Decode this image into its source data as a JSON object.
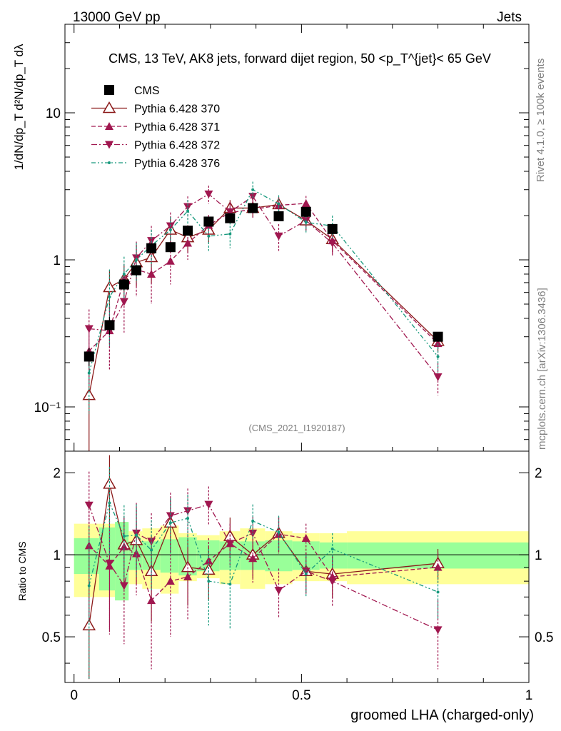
{
  "header": {
    "left": "13000 GeV pp",
    "right": "Jets"
  },
  "side": {
    "top": "Rivet 4.1.0, ≥ 100k events",
    "bottom": "mcplots.cern.ch [arXiv:1306.3436]"
  },
  "colors": {
    "cms": "#000000",
    "p370": "#8b1a1a",
    "p371": "#a0174f",
    "p372": "#a0174f",
    "p376": "#17997d",
    "band_inner": "#99ff99",
    "band_outer": "#ffff99"
  },
  "chart_data": {
    "type": "scatter",
    "title": "CMS, 13 TeV, AK8 jets, forward dijet region, 50 <p_T^{jet}< 65 GeV",
    "watermark": "(CMS_2021_I1920187)",
    "ylabel_main": "1/dN/dp_T d²N/dp_T dλ",
    "ylabel_ratio": "Ratio to CMS",
    "xlabel": "groomed LHA (charged-only)",
    "xlim": [
      -0.02,
      1.0
    ],
    "ylim_main": [
      0.05,
      40
    ],
    "ylim_ratio": [
      0.34,
      2.4
    ],
    "x_ticks": [
      "0",
      "0.5",
      "1"
    ],
    "y_ticks_main": [
      "10⁻¹",
      "1",
      "10"
    ],
    "y_ticks_ratio": [
      "0.5",
      "1",
      "2"
    ],
    "x": [
      0.033,
      0.078,
      0.11,
      0.137,
      0.17,
      0.212,
      0.25,
      0.296,
      0.343,
      0.393,
      0.45,
      0.51,
      0.568,
      0.8
    ],
    "bin_edges": [
      0.0,
      0.055,
      0.09,
      0.12,
      0.15,
      0.19,
      0.23,
      0.27,
      0.32,
      0.365,
      0.42,
      0.48,
      0.54,
      0.6,
      1.0
    ],
    "cms_band_inner": [
      0.15,
      0.26,
      0.32,
      0.12,
      0.12,
      0.14,
      0.16,
      0.13,
      0.12,
      0.12,
      0.13,
      0.12,
      0.11,
      0.11
    ],
    "cms_band_outer": [
      0.3,
      0.3,
      0.3,
      0.22,
      0.25,
      0.28,
      0.2,
      0.18,
      0.22,
      0.25,
      0.22,
      0.2,
      0.2,
      0.22
    ],
    "series": [
      {
        "name": "CMS",
        "marker": "square",
        "style": "none",
        "values": [
          0.22,
          0.36,
          0.68,
          0.85,
          1.2,
          1.22,
          1.58,
          1.82,
          1.92,
          2.25,
          1.98,
          2.12,
          1.62,
          0.3
        ],
        "err": [
          0.03,
          0.05,
          0.06,
          0.07,
          0.08,
          0.08,
          0.09,
          0.1,
          0.1,
          0.1,
          0.1,
          0.1,
          0.09,
          0.02
        ]
      },
      {
        "name": "Pythia 6.428 370",
        "marker": "triangle-up-open",
        "style": "solid",
        "values": [
          0.12,
          0.65,
          0.74,
          0.96,
          1.04,
          1.6,
          1.42,
          1.6,
          2.25,
          2.25,
          2.38,
          1.85,
          1.38,
          0.28
        ],
        "err": [
          0.07,
          0.2,
          0.18,
          0.3,
          0.35,
          0.35,
          0.3,
          0.3,
          0.3,
          0.3,
          0.3,
          0.25,
          0.25,
          0.04
        ],
        "ratio": [
          0.55,
          1.82,
          1.09,
          1.13,
          0.87,
          1.31,
          0.9,
          0.88,
          1.17,
          1.0,
          1.2,
          0.87,
          0.85,
          0.93
        ],
        "ratio_err": [
          0.55,
          0.5,
          0.3,
          0.35,
          0.3,
          0.3,
          0.25,
          0.2,
          0.2,
          0.18,
          0.18,
          0.15,
          0.15,
          0.12
        ]
      },
      {
        "name": "Pythia 6.428 371",
        "marker": "triangle-up",
        "style": "dashed",
        "values": [
          0.24,
          0.33,
          0.74,
          0.86,
          0.8,
          0.98,
          1.3,
          1.72,
          2.1,
          2.2,
          2.35,
          2.42,
          1.35,
          0.27
        ],
        "err": [
          0.1,
          0.15,
          0.2,
          0.3,
          0.3,
          0.3,
          0.3,
          0.3,
          0.3,
          0.3,
          0.3,
          0.3,
          0.25,
          0.05
        ],
        "ratio": [
          1.08,
          0.91,
          1.07,
          1.01,
          0.68,
          0.8,
          0.83,
          0.95,
          1.1,
          0.97,
          1.19,
          1.15,
          0.83,
          0.9
        ],
        "ratio_err": [
          0.5,
          0.4,
          0.3,
          0.3,
          0.3,
          0.3,
          0.25,
          0.2,
          0.2,
          0.18,
          0.18,
          0.15,
          0.15,
          0.12
        ]
      },
      {
        "name": "Pythia 6.428 372",
        "marker": "triangle-down",
        "style": "dashdot",
        "values": [
          0.34,
          0.33,
          0.52,
          1.03,
          1.35,
          1.7,
          2.3,
          2.8,
          2.12,
          2.7,
          1.45,
          1.85,
          1.3,
          0.16
        ],
        "err": [
          0.12,
          0.15,
          0.2,
          0.3,
          0.35,
          0.4,
          0.4,
          0.4,
          0.35,
          0.35,
          0.3,
          0.3,
          0.25,
          0.04
        ],
        "ratio": [
          1.52,
          0.93,
          0.77,
          1.2,
          1.12,
          1.39,
          1.45,
          1.53,
          1.1,
          1.2,
          0.74,
          0.87,
          0.8,
          0.53
        ],
        "ratio_err": [
          0.5,
          0.4,
          0.3,
          0.35,
          0.3,
          0.3,
          0.3,
          0.25,
          0.2,
          0.18,
          0.15,
          0.15,
          0.15,
          0.15
        ]
      },
      {
        "name": "Pythia 6.428 376",
        "marker": "dot",
        "style": "dashdotdot",
        "values": [
          0.17,
          0.56,
          0.8,
          1.0,
          1.25,
          1.6,
          2.15,
          1.45,
          1.5,
          3.0,
          2.4,
          1.8,
          1.7,
          0.22
        ],
        "err": [
          0.08,
          0.3,
          0.25,
          0.3,
          0.35,
          0.35,
          0.4,
          0.3,
          0.3,
          0.4,
          0.35,
          0.3,
          0.3,
          0.05
        ],
        "ratio": [
          0.77,
          1.55,
          1.17,
          1.18,
          1.04,
          1.31,
          1.36,
          0.8,
          0.78,
          1.33,
          1.21,
          0.85,
          1.05,
          0.73
        ],
        "ratio_err": [
          0.5,
          0.55,
          0.35,
          0.35,
          0.3,
          0.3,
          0.3,
          0.25,
          0.25,
          0.2,
          0.18,
          0.15,
          0.15,
          0.15
        ]
      }
    ]
  }
}
